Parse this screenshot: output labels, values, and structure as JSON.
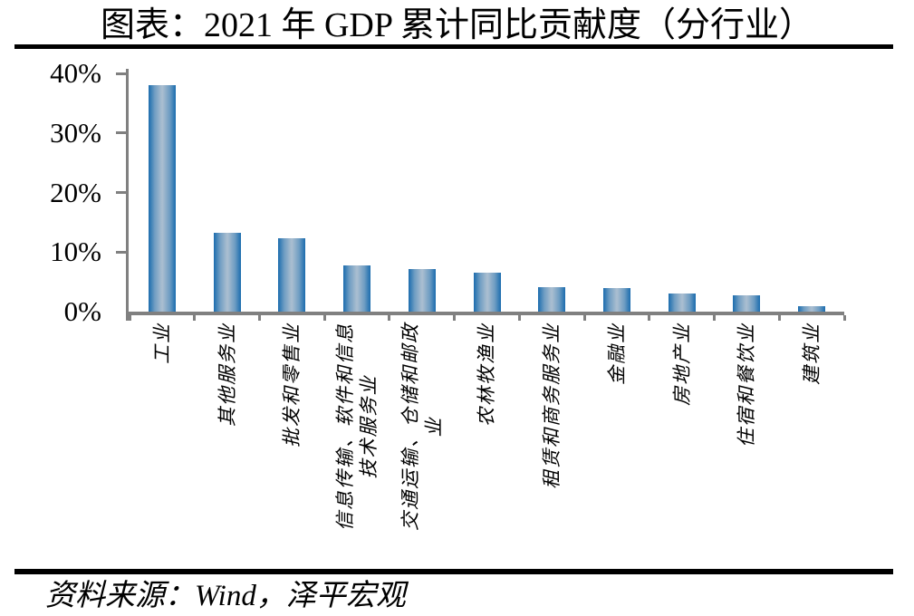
{
  "page": {
    "title": "图表：2021 年 GDP 累计同比贡献度（分行业）",
    "source_note": "资料来源：Wind，泽平宏观"
  },
  "colors": {
    "bar_edge": "#1b6cae",
    "bar_mid": "#6d9cc2",
    "bar_center": "#a8bdd0",
    "axis": "#808080",
    "divider": "#000000",
    "text": "#000000"
  },
  "chart_data": {
    "type": "bar",
    "title": "图表：2021 年 GDP 累计同比贡献度（分行业）",
    "unit": "%",
    "categories": [
      "工业",
      "其他服务业",
      "批发和零售业",
      "信息传输、软件和信息技术服务业",
      "交通运输、仓储和邮政业",
      "农林牧渔业",
      "租赁和商务服务业",
      "金融业",
      "房地产业",
      "住宿和餐饮业",
      "建筑业"
    ],
    "category_display_lines": [
      [
        "工业"
      ],
      [
        "其他服务业"
      ],
      [
        "批发和零售业"
      ],
      [
        "信息传输、软件和信息",
        "技术服务业"
      ],
      [
        "交通运输、仓储和邮政",
        "业"
      ],
      [
        "农林牧渔业"
      ],
      [
        "租赁和商务服务业"
      ],
      [
        "金融业"
      ],
      [
        "房地产业"
      ],
      [
        "住宿和餐饮业"
      ],
      [
        "建筑业"
      ]
    ],
    "values": [
      38.0,
      13.2,
      12.3,
      7.7,
      7.1,
      6.6,
      4.1,
      3.9,
      3.0,
      2.8,
      0.9
    ],
    "ylim": [
      0,
      40
    ],
    "ytick_values": [
      0,
      10,
      20,
      30,
      40
    ],
    "ytick_labels": [
      "0%",
      "10%",
      "20%",
      "30%",
      "40%"
    ],
    "xlabel": "",
    "ylabel": "",
    "grid": false,
    "legend": "none",
    "source": "资料来源：Wind，泽平宏观"
  }
}
